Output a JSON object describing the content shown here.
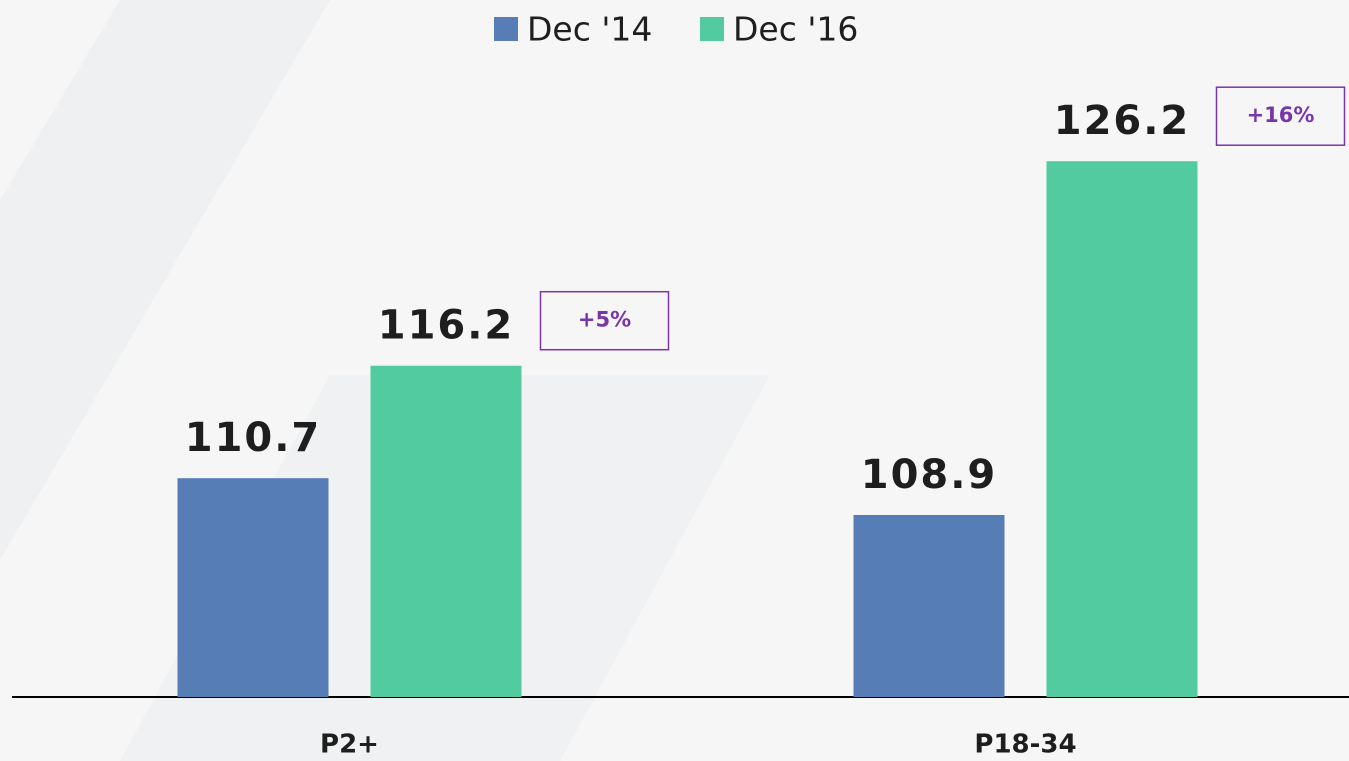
{
  "chart_data": {
    "type": "bar",
    "categories": [
      "P2+",
      "P18-34"
    ],
    "series": [
      {
        "name": "Dec '14",
        "color": "#567db5",
        "values": [
          110.7,
          108.9
        ]
      },
      {
        "name": "Dec '16",
        "color": "#52cba1",
        "values": [
          116.2,
          126.2
        ]
      }
    ],
    "annotations": [
      "+5%",
      "+16%"
    ],
    "ylim": [
      100,
      128
    ],
    "legend": "top"
  }
}
